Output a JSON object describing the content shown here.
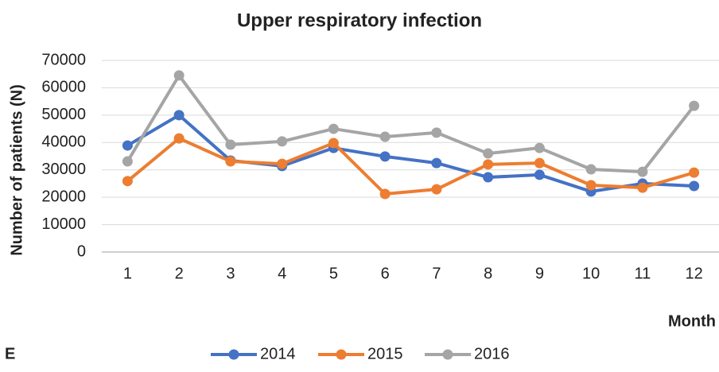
{
  "chart_data": {
    "type": "line",
    "title": "Upper respiratory infection",
    "y_label": "Number of patients (N)",
    "x_label": "Month",
    "panel_label": "E",
    "categories": [
      "1",
      "2",
      "3",
      "4",
      "5",
      "6",
      "7",
      "8",
      "9",
      "10",
      "11",
      "12"
    ],
    "series": [
      {
        "name": "2014",
        "color": "#4472c4",
        "values": [
          38900,
          50000,
          33400,
          31400,
          38000,
          34900,
          32500,
          27300,
          28200,
          22100,
          25000,
          24100
        ]
      },
      {
        "name": "2015",
        "color": "#ed7d31",
        "values": [
          25900,
          41500,
          33100,
          32200,
          39800,
          21200,
          22900,
          32000,
          32500,
          24400,
          23500,
          29000
        ]
      },
      {
        "name": "2016",
        "color": "#a5a5a5",
        "values": [
          33100,
          64500,
          39200,
          40400,
          45000,
          42100,
          43600,
          36000,
          38000,
          30200,
          29300,
          53400
        ]
      }
    ],
    "ylim": [
      0,
      70000
    ],
    "yticks": [
      0,
      10000,
      20000,
      30000,
      40000,
      50000,
      60000,
      70000
    ],
    "grid": true,
    "legend": "bottom"
  }
}
